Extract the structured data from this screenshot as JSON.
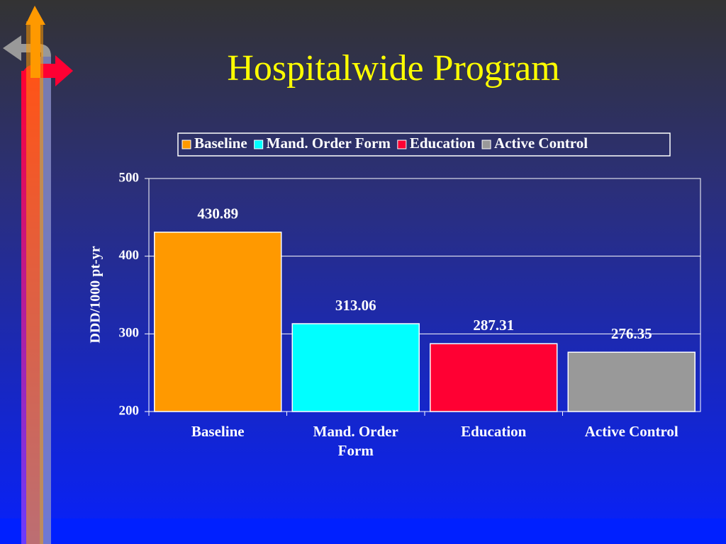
{
  "chart_data": {
    "type": "bar",
    "title": "Hospitalwide Program",
    "y_label": "DDD/1000 pt-yr",
    "categories": [
      "Baseline",
      "Mand. Order Form",
      "Education",
      "Active Control"
    ],
    "values": [
      430.89,
      313.06,
      287.31,
      276.35
    ],
    "colors": [
      "#ff9900",
      "#00ffff",
      "#ff0033",
      "#999999"
    ],
    "ylim": [
      200,
      500
    ],
    "yticks": [
      200,
      300,
      400,
      500
    ],
    "grid": true,
    "legend": "top"
  }
}
